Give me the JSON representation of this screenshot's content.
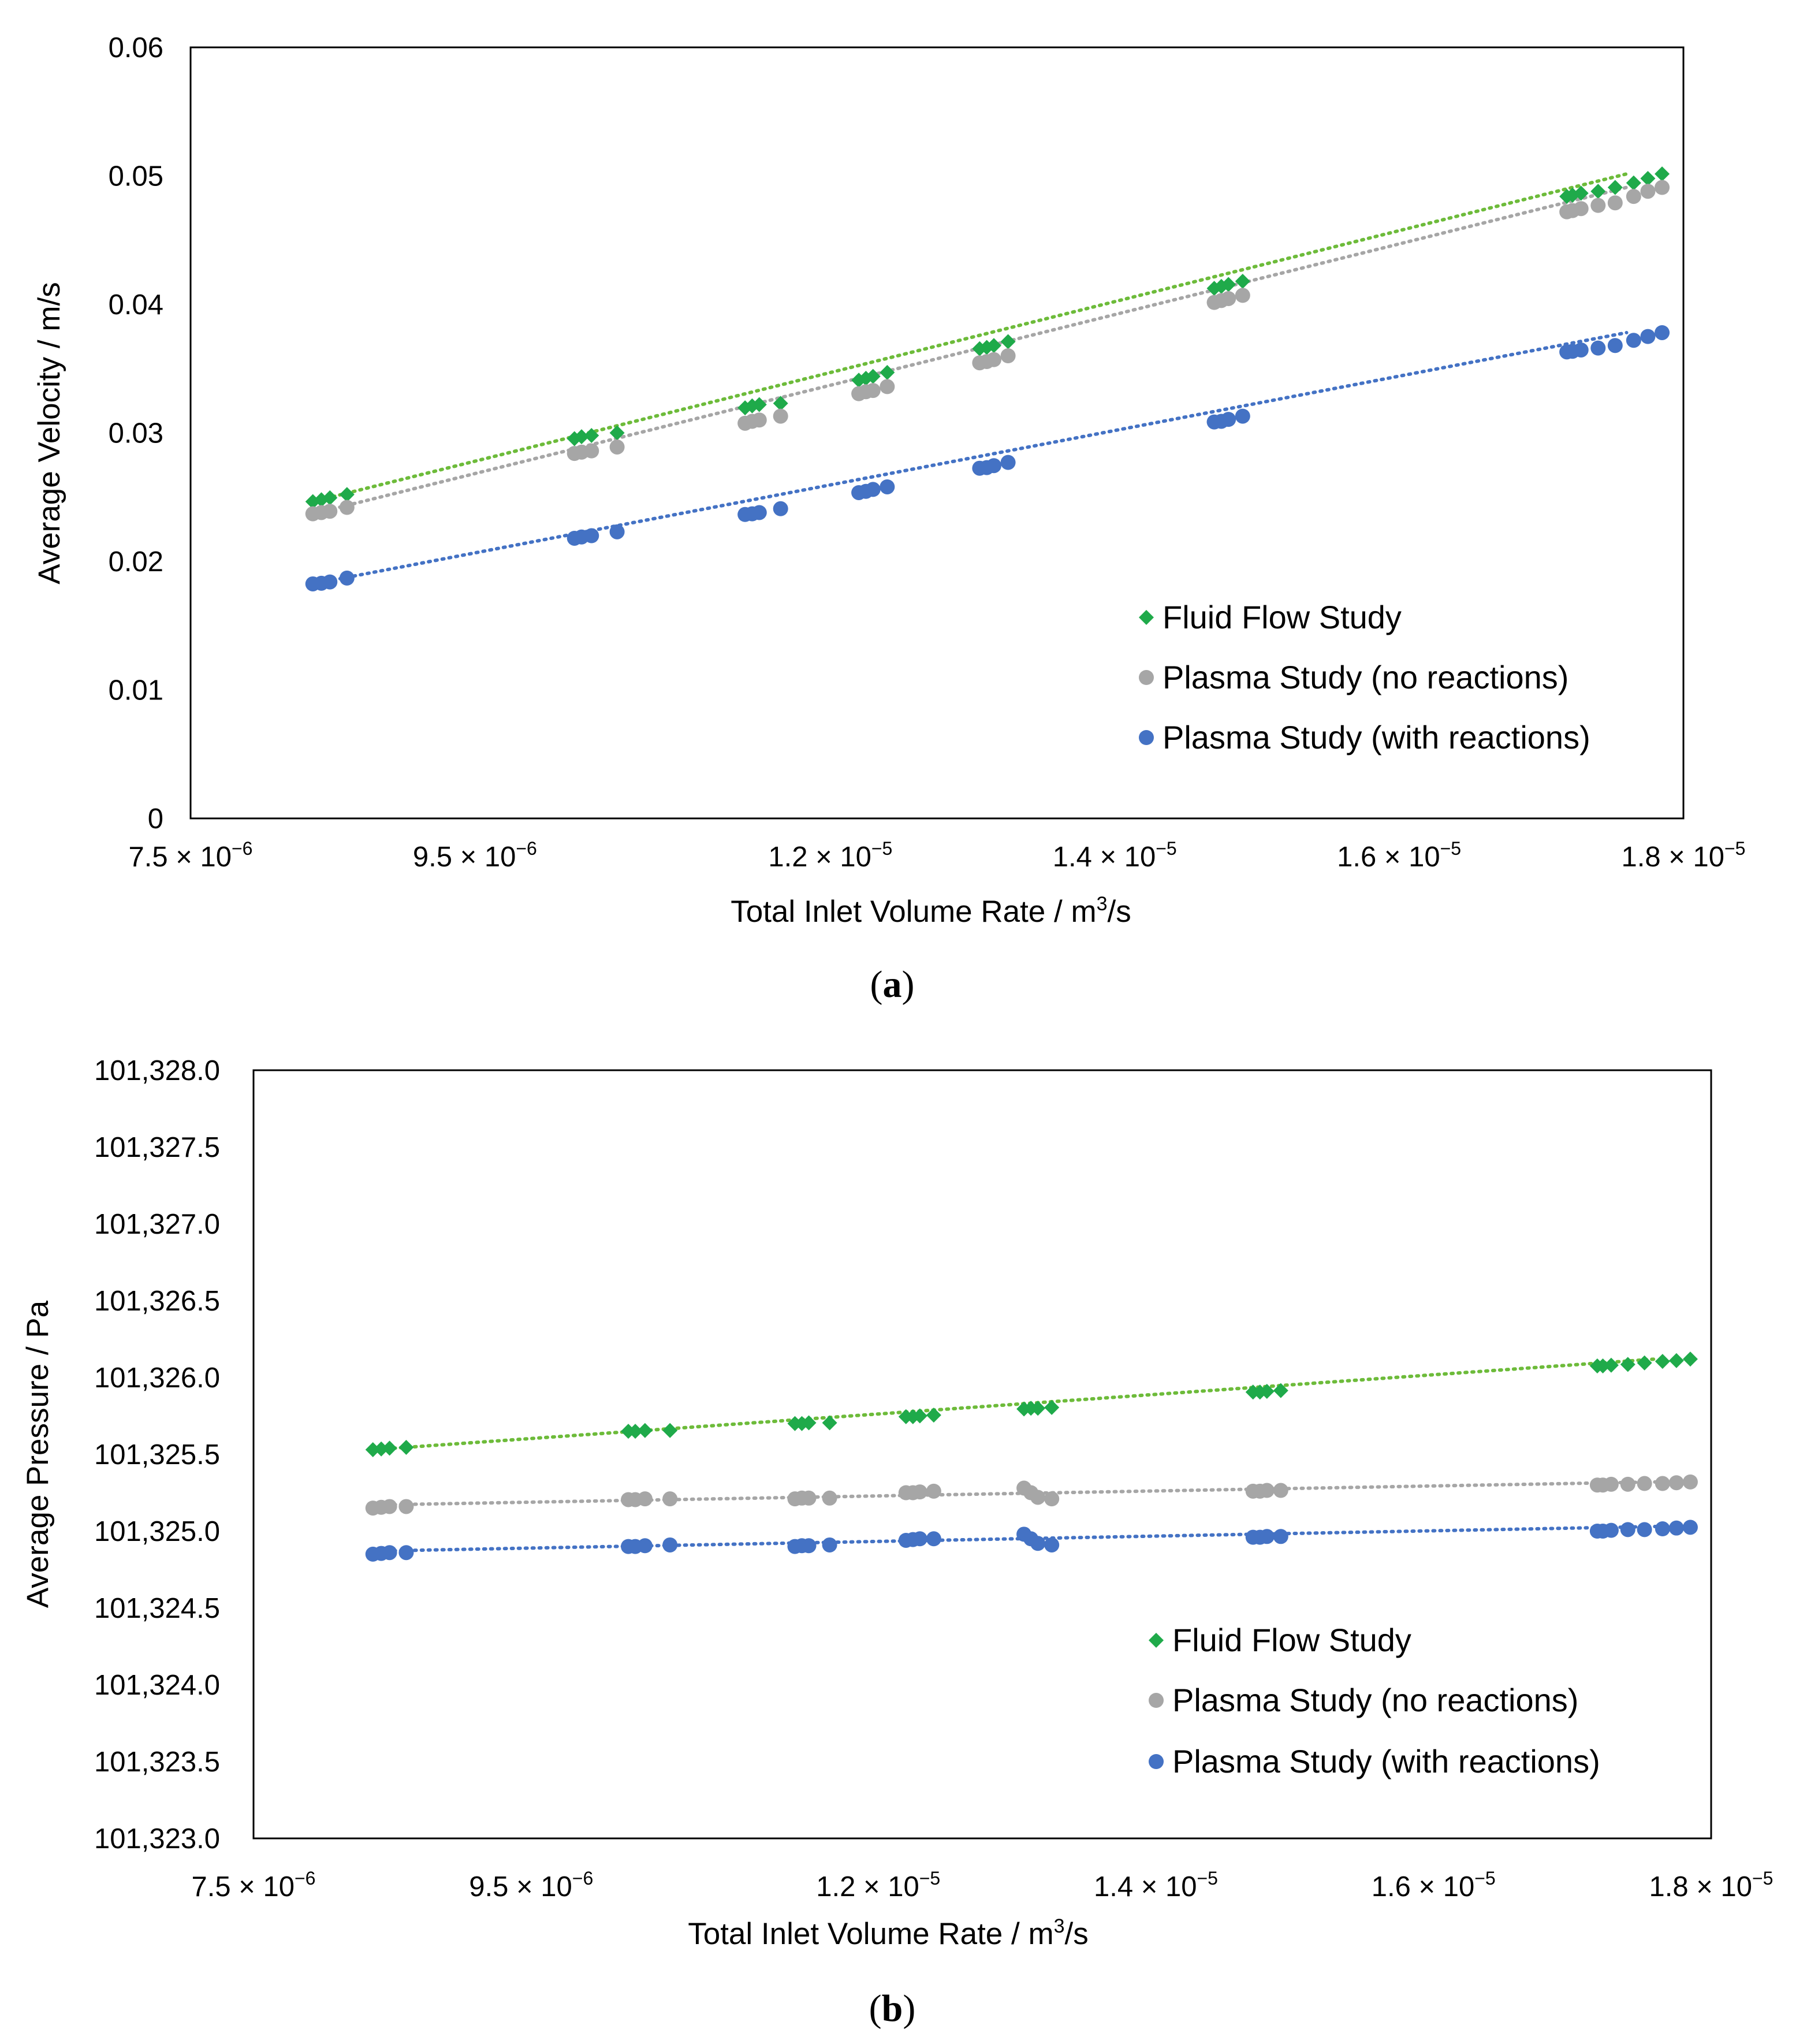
{
  "colors": {
    "fluid": "#1faa4a",
    "plasma_no": "#a6a6a6",
    "plasma_with": "#4472c4",
    "fluid_line": "#6dbb3a",
    "plasma_no_line": "#a6a6a6",
    "plasma_with_line": "#4472c4"
  },
  "chart_data": [
    {
      "type": "scatter",
      "panel_label": "a",
      "xlabel": "Total Inlet Volume Rate /  m",
      "xlabel_sup": "3",
      "xlabel_tail": "/s",
      "ylabel": "Average Velocity / m/s",
      "xlim": [
        7.5e-06,
        1.8e-05
      ],
      "ylim": [
        0,
        0.06
      ],
      "grid": false,
      "legend_position": "bottom-right",
      "x_ticks": [
        {
          "value": 7.5e-06,
          "mant": "7.5 × 10",
          "exp": "−6"
        },
        {
          "value": 9.5e-06,
          "mant": "9.5 × 10",
          "exp": "−6"
        },
        {
          "value": 1.2e-05,
          "mant": "1.2 × 10",
          "exp": "−5"
        },
        {
          "value": 1.4e-05,
          "mant": "1.4 × 10",
          "exp": "−5"
        },
        {
          "value": 1.6e-05,
          "mant": "1.6 × 10",
          "exp": "−5"
        },
        {
          "value": 1.8e-05,
          "mant": "1.8 × 10",
          "exp": "−5"
        }
      ],
      "y_ticks": [
        {
          "value": 0,
          "label": "0"
        },
        {
          "value": 0.01,
          "label": "0.01"
        },
        {
          "value": 0.02,
          "label": "0.02"
        },
        {
          "value": 0.03,
          "label": "0.03"
        },
        {
          "value": 0.04,
          "label": "0.04"
        },
        {
          "value": 0.05,
          "label": "0.05"
        },
        {
          "value": 0.06,
          "label": "0.06"
        }
      ],
      "series": [
        {
          "name": "Fluid Flow Study",
          "marker": "diamond",
          "color_key": "fluid",
          "line_color_key": "fluid_line",
          "trend": [
            [
              8.36e-06,
              0.02465
            ],
            [
              1.76e-05,
              0.05015
            ]
          ],
          "x": [
            8.36e-06,
            8.42e-06,
            8.48e-06,
            8.6e-06,
            1.02e-05,
            1.025e-05,
            1.032e-05,
            1.05e-05,
            1.14e-05,
            1.145e-05,
            1.15e-05,
            1.165e-05,
            1.22e-05,
            1.225e-05,
            1.23e-05,
            1.24e-05,
            1.305e-05,
            1.31e-05,
            1.315e-05,
            1.325e-05,
            1.47e-05,
            1.475e-05,
            1.48e-05,
            1.49e-05,
            1.718e-05,
            1.722e-05,
            1.728e-05,
            1.74e-05,
            1.752e-05,
            1.765e-05,
            1.775e-05,
            1.785e-05
          ],
          "y": [
            0.02465,
            0.0248,
            0.02495,
            0.0252,
            0.02955,
            0.0297,
            0.0298,
            0.03,
            0.03195,
            0.0321,
            0.0322,
            0.0323,
            0.0341,
            0.03425,
            0.0344,
            0.0347,
            0.03655,
            0.03665,
            0.0368,
            0.0371,
            0.04125,
            0.0414,
            0.04155,
            0.0418,
            0.0484,
            0.0485,
            0.04865,
            0.0488,
            0.0491,
            0.04945,
            0.0498,
            0.05015
          ]
        },
        {
          "name": "Plasma Study (no reactions)",
          "marker": "circle",
          "color_key": "plasma_no",
          "line_color_key": "plasma_no_line",
          "trend": [
            [
              8.36e-06,
              0.0237
            ],
            [
              1.76e-05,
              0.0491
            ]
          ],
          "x": [
            8.36e-06,
            8.42e-06,
            8.48e-06,
            8.6e-06,
            1.02e-05,
            1.025e-05,
            1.032e-05,
            1.05e-05,
            1.14e-05,
            1.145e-05,
            1.15e-05,
            1.165e-05,
            1.22e-05,
            1.225e-05,
            1.23e-05,
            1.24e-05,
            1.305e-05,
            1.31e-05,
            1.315e-05,
            1.325e-05,
            1.47e-05,
            1.475e-05,
            1.48e-05,
            1.49e-05,
            1.718e-05,
            1.722e-05,
            1.728e-05,
            1.74e-05,
            1.752e-05,
            1.765e-05,
            1.775e-05,
            1.785e-05
          ],
          "y": [
            0.0237,
            0.0238,
            0.0239,
            0.0242,
            0.0284,
            0.0285,
            0.0286,
            0.0289,
            0.03075,
            0.0309,
            0.031,
            0.0313,
            0.03305,
            0.0332,
            0.0333,
            0.0336,
            0.03545,
            0.03555,
            0.0357,
            0.036,
            0.04015,
            0.0403,
            0.04045,
            0.0407,
            0.0472,
            0.0473,
            0.04745,
            0.0477,
            0.0479,
            0.0484,
            0.0488,
            0.0491
          ]
        },
        {
          "name": "Plasma Study (with reactions)",
          "marker": "circle",
          "color_key": "plasma_with",
          "line_color_key": "plasma_with_line",
          "trend": [
            [
              8.36e-06,
              0.01825
            ],
            [
              1.76e-05,
              0.0378
            ]
          ],
          "x": [
            8.36e-06,
            8.42e-06,
            8.48e-06,
            8.6e-06,
            1.02e-05,
            1.025e-05,
            1.032e-05,
            1.05e-05,
            1.14e-05,
            1.145e-05,
            1.15e-05,
            1.165e-05,
            1.22e-05,
            1.225e-05,
            1.23e-05,
            1.24e-05,
            1.305e-05,
            1.31e-05,
            1.315e-05,
            1.325e-05,
            1.47e-05,
            1.475e-05,
            1.48e-05,
            1.49e-05,
            1.718e-05,
            1.722e-05,
            1.728e-05,
            1.74e-05,
            1.752e-05,
            1.765e-05,
            1.775e-05,
            1.785e-05
          ],
          "y": [
            0.01825,
            0.0183,
            0.0184,
            0.0187,
            0.0218,
            0.0219,
            0.022,
            0.0223,
            0.02365,
            0.0237,
            0.0238,
            0.0241,
            0.02535,
            0.02545,
            0.0256,
            0.0258,
            0.02725,
            0.0273,
            0.02745,
            0.0277,
            0.03085,
            0.0309,
            0.03105,
            0.0313,
            0.0363,
            0.03635,
            0.03645,
            0.0366,
            0.0368,
            0.0372,
            0.0375,
            0.0378
          ]
        }
      ]
    },
    {
      "type": "scatter",
      "panel_label": "b",
      "xlabel": "Total Inlet Volume Rate /  m",
      "xlabel_sup": "3",
      "xlabel_tail": "/s",
      "ylabel": "Average Pressure / Pa",
      "xlim": [
        7.5e-06,
        1.8e-05
      ],
      "ylim": [
        101323.0,
        101328.0
      ],
      "grid": false,
      "legend_position": "bottom-right",
      "x_ticks": [
        {
          "value": 7.5e-06,
          "mant": "7.5 × 10",
          "exp": "−6"
        },
        {
          "value": 9.5e-06,
          "mant": "9.5 × 10",
          "exp": "−6"
        },
        {
          "value": 1.2e-05,
          "mant": "1.2 × 10",
          "exp": "−5"
        },
        {
          "value": 1.4e-05,
          "mant": "1.4 × 10",
          "exp": "−5"
        },
        {
          "value": 1.6e-05,
          "mant": "1.6 × 10",
          "exp": "−5"
        },
        {
          "value": 1.8e-05,
          "mant": "1.8 × 10",
          "exp": "−5"
        }
      ],
      "y_ticks": [
        {
          "value": 101323.0,
          "label": "101,323.0"
        },
        {
          "value": 101323.5,
          "label": "101,323.5"
        },
        {
          "value": 101324.0,
          "label": "101,324.0"
        },
        {
          "value": 101324.5,
          "label": "101,324.5"
        },
        {
          "value": 101325.0,
          "label": "101,325.0"
        },
        {
          "value": 101325.5,
          "label": "101,325.5"
        },
        {
          "value": 101326.0,
          "label": "101,326.0"
        },
        {
          "value": 101326.5,
          "label": "101,326.5"
        },
        {
          "value": 101327.0,
          "label": "101,327.0"
        },
        {
          "value": 101327.5,
          "label": "101,327.5"
        },
        {
          "value": 101328.0,
          "label": "101,328.0"
        }
      ],
      "series": [
        {
          "name": "Fluid Flow Study",
          "marker": "diamond",
          "color_key": "fluid",
          "line_color_key": "fluid_line",
          "trend": [
            [
              8.36e-06,
              101325.53
            ],
            [
              1.76e-05,
              101326.12
            ]
          ],
          "x": [
            8.36e-06,
            8.42e-06,
            8.48e-06,
            8.6e-06,
            1.02e-05,
            1.025e-05,
            1.032e-05,
            1.05e-05,
            1.14e-05,
            1.145e-05,
            1.15e-05,
            1.165e-05,
            1.22e-05,
            1.225e-05,
            1.23e-05,
            1.24e-05,
            1.305e-05,
            1.31e-05,
            1.315e-05,
            1.325e-05,
            1.47e-05,
            1.475e-05,
            1.48e-05,
            1.49e-05,
            1.718e-05,
            1.722e-05,
            1.728e-05,
            1.74e-05,
            1.752e-05,
            1.765e-05,
            1.775e-05,
            1.785e-05
          ],
          "y": [
            101325.53,
            101325.535,
            101325.54,
            101325.545,
            101325.65,
            101325.65,
            101325.655,
            101325.655,
            101325.7,
            101325.7,
            101325.705,
            101325.705,
            101325.745,
            101325.745,
            101325.75,
            101325.755,
            101325.795,
            101325.8,
            101325.8,
            101325.805,
            101325.905,
            101325.905,
            101325.91,
            101325.915,
            101326.075,
            101326.075,
            101326.08,
            101326.085,
            101326.095,
            101326.105,
            101326.11,
            101326.12
          ]
        },
        {
          "name": "Plasma Study (no reactions)",
          "marker": "circle",
          "color_key": "plasma_no",
          "line_color_key": "plasma_no_line",
          "trend": [
            [
              8.36e-06,
              101325.17
            ],
            [
              1.76e-05,
              101325.32
            ]
          ],
          "x": [
            8.36e-06,
            8.42e-06,
            8.48e-06,
            8.6e-06,
            1.02e-05,
            1.025e-05,
            1.032e-05,
            1.05e-05,
            1.14e-05,
            1.145e-05,
            1.15e-05,
            1.165e-05,
            1.22e-05,
            1.225e-05,
            1.23e-05,
            1.24e-05,
            1.305e-05,
            1.31e-05,
            1.315e-05,
            1.325e-05,
            1.47e-05,
            1.475e-05,
            1.48e-05,
            1.49e-05,
            1.718e-05,
            1.722e-05,
            1.728e-05,
            1.74e-05,
            1.752e-05,
            1.765e-05,
            1.775e-05,
            1.785e-05
          ],
          "y": [
            101325.15,
            101325.155,
            101325.16,
            101325.16,
            101325.205,
            101325.205,
            101325.21,
            101325.21,
            101325.21,
            101325.215,
            101325.215,
            101325.215,
            101325.25,
            101325.25,
            101325.255,
            101325.26,
            101325.28,
            101325.25,
            101325.22,
            101325.21,
            101325.26,
            101325.26,
            101325.265,
            101325.265,
            101325.3,
            101325.3,
            101325.305,
            101325.305,
            101325.31,
            101325.31,
            101325.315,
            101325.32
          ]
        },
        {
          "name": "Plasma Study (with reactions)",
          "marker": "circle",
          "color_key": "plasma_with",
          "line_color_key": "plasma_with_line",
          "trend": [
            [
              8.36e-06,
              101324.87
            ],
            [
              1.76e-05,
              101325.03
            ]
          ],
          "x": [
            8.36e-06,
            8.42e-06,
            8.48e-06,
            8.6e-06,
            1.02e-05,
            1.025e-05,
            1.032e-05,
            1.05e-05,
            1.14e-05,
            1.145e-05,
            1.15e-05,
            1.165e-05,
            1.22e-05,
            1.225e-05,
            1.23e-05,
            1.24e-05,
            1.305e-05,
            1.31e-05,
            1.315e-05,
            1.325e-05,
            1.47e-05,
            1.475e-05,
            1.48e-05,
            1.49e-05,
            1.718e-05,
            1.722e-05,
            1.728e-05,
            1.74e-05,
            1.752e-05,
            1.765e-05,
            1.775e-05,
            1.785e-05
          ],
          "y": [
            101324.85,
            101324.855,
            101324.86,
            101324.86,
            101324.9,
            101324.9,
            101324.905,
            101324.91,
            101324.9,
            101324.905,
            101324.905,
            101324.91,
            101324.94,
            101324.945,
            101324.95,
            101324.95,
            101324.98,
            101324.95,
            101324.92,
            101324.91,
            101324.96,
            101324.96,
            101324.965,
            101324.965,
            101325.0,
            101325.0,
            101325.005,
            101325.01,
            101325.01,
            101325.015,
            101325.02,
            101325.025
          ]
        }
      ]
    }
  ]
}
